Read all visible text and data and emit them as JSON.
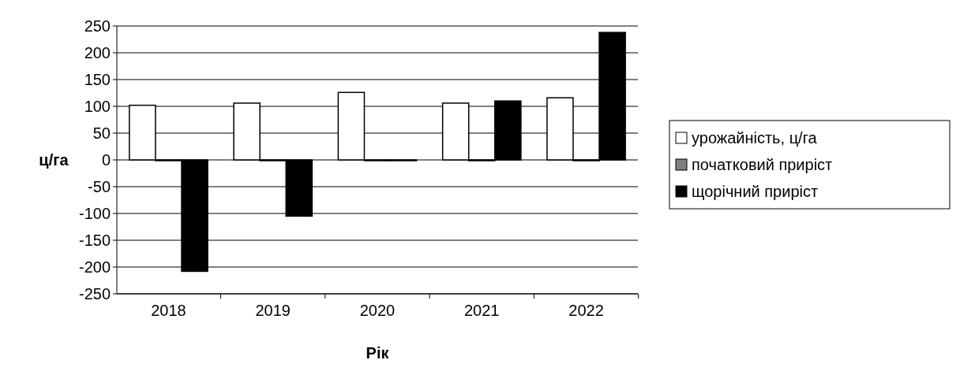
{
  "chart_data": {
    "type": "bar",
    "categories": [
      "2018",
      "2019",
      "2020",
      "2021",
      "2022"
    ],
    "xlabel": "Рік",
    "ylabel": "ц/га",
    "ylim": [
      -250,
      250
    ],
    "yticks": [
      -250,
      -200,
      -150,
      -100,
      -50,
      0,
      50,
      100,
      150,
      200,
      250
    ],
    "grid": "y",
    "legend": "right",
    "series": [
      {
        "name": "урожайність, ц/га",
        "color": "#ffffff",
        "values": [
          102,
          106,
          126,
          106,
          116
        ]
      },
      {
        "name": "початковий приріст",
        "color": "#808080",
        "values": [
          0,
          0,
          0,
          0,
          0
        ]
      },
      {
        "name": "щорічний приріст",
        "color": "#000000",
        "values": [
          -208,
          -105,
          0,
          110,
          238
        ]
      }
    ]
  }
}
